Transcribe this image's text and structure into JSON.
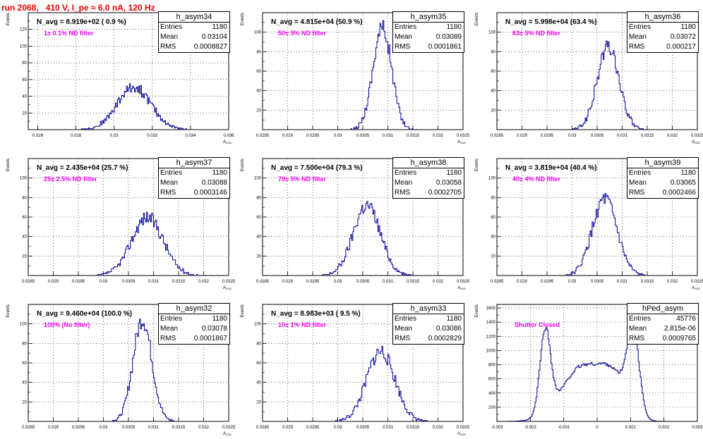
{
  "title": "run 2068,   410 V, I_pe ≈ 6.0 nA, 120 Hz",
  "colors": {
    "title": "#ee0000",
    "histogram": "#000099",
    "filter_text": "#ee00ee",
    "grid": "#000000"
  },
  "stat_labels": {
    "entries": "Entries",
    "mean": "Mean",
    "rms": "RMS"
  },
  "chart_data": [
    {
      "type": "histogram",
      "name": "h_asym34",
      "navg": "N_avg = 8.919e+02 ( 0.9 %)",
      "annotation": "1± 0.1% ND filter",
      "stats": {
        "entries": "1180",
        "mean": "0.03104",
        "rms": "0.0008827"
      },
      "xlabel": "A_LED",
      "ylabel": "Events",
      "grid": true,
      "xlim": [
        0.0255,
        0.036
      ],
      "ylim": [
        0,
        140
      ],
      "xticks": [
        "0.026",
        "0.028",
        "0.03",
        "0.032",
        "0.034",
        "0.036"
      ],
      "xtick_values": [
        0.026,
        0.028,
        0.03,
        0.032,
        0.034,
        0.036
      ],
      "yticks": [
        "20",
        "40",
        "60",
        "80",
        "100",
        "120"
      ],
      "ytick_values": [
        20,
        40,
        60,
        80,
        100,
        120
      ],
      "peaks": [
        {
          "mean": 0.03104,
          "sigma": 0.00088,
          "height": 51
        }
      ],
      "bins": [
        0.0255,
        0.036,
        200
      ],
      "seed": 34
    },
    {
      "type": "histogram",
      "name": "h_asym35",
      "navg": "N_avg = 4.815e+04 (50.9 %)",
      "annotation": "50± 5% ND filter",
      "stats": {
        "entries": "1180",
        "mean": "0.03089",
        "rms": "0.0001861"
      },
      "xlabel": "A_LED",
      "ylabel": "Events",
      "grid": true,
      "xlim": [
        0.0285,
        0.0325
      ],
      "ylim": [
        0,
        120
      ],
      "xticks": [
        "0.0285",
        "0.029",
        "0.0295",
        "0.03",
        "0.0305",
        "0.031",
        "0.0315",
        "0.032",
        "0.0325"
      ],
      "xtick_values": [
        0.0285,
        0.029,
        0.0295,
        0.03,
        0.0305,
        0.031,
        0.0315,
        0.032,
        0.0325
      ],
      "yticks": [
        "20",
        "40",
        "60",
        "80",
        "100"
      ],
      "ytick_values": [
        20,
        40,
        60,
        80,
        100
      ],
      "peaks": [
        {
          "mean": 0.03089,
          "sigma": 0.000186,
          "height": 105
        }
      ],
      "bins": [
        0.0285,
        0.0325,
        200
      ],
      "seed": 35
    },
    {
      "type": "histogram",
      "name": "h_asym36",
      "navg": "N_avg = 5.998e+04 (63.4 %)",
      "annotation": "63± 5% ND filter",
      "stats": {
        "entries": "1180",
        "mean": "0.03072",
        "rms": "0.000217"
      },
      "xlabel": "A_LED",
      "ylabel": "Events",
      "grid": true,
      "xlim": [
        0.0285,
        0.0325
      ],
      "ylim": [
        0,
        120
      ],
      "xticks": [
        "0.0285",
        "0.029",
        "0.0295",
        "0.03",
        "0.0305",
        "0.031",
        "0.0315",
        "0.032",
        "0.0325"
      ],
      "xtick_values": [
        0.0285,
        0.029,
        0.0295,
        0.03,
        0.0305,
        0.031,
        0.0315,
        0.032,
        0.0325
      ],
      "yticks": [
        "20",
        "40",
        "60",
        "80",
        "100"
      ],
      "ytick_values": [
        20,
        40,
        60,
        80,
        100
      ],
      "peaks": [
        {
          "mean": 0.03072,
          "sigma": 0.000217,
          "height": 85
        }
      ],
      "bins": [
        0.0285,
        0.0325,
        200
      ],
      "seed": 36
    },
    {
      "type": "histogram",
      "name": "h_asym37",
      "navg": "N_avg = 2.435e+04 (25.7 %)",
      "annotation": "25± 2.5% ND filter",
      "stats": {
        "entries": "1180",
        "mean": "0.03088",
        "rms": "0.0003146"
      },
      "xlabel": "A_LED",
      "ylabel": "Events",
      "grid": true,
      "xlim": [
        0.0285,
        0.0325
      ],
      "ylim": [
        0,
        120
      ],
      "xticks": [
        "0.0285",
        "0.029",
        "0.0295",
        "0.03",
        "0.0305",
        "0.031",
        "0.0315",
        "0.032",
        "0.0325"
      ],
      "xtick_values": [
        0.0285,
        0.029,
        0.0295,
        0.03,
        0.0305,
        0.031,
        0.0315,
        0.032,
        0.0325
      ],
      "yticks": [
        "20",
        "40",
        "60",
        "80",
        "100"
      ],
      "ytick_values": [
        20,
        40,
        60,
        80,
        100
      ],
      "peaks": [
        {
          "mean": 0.03088,
          "sigma": 0.000315,
          "height": 60
        }
      ],
      "bins": [
        0.0285,
        0.0325,
        200
      ],
      "seed": 37
    },
    {
      "type": "histogram",
      "name": "h_asym38",
      "navg": "N_avg = 7.500e+04 (79.3 %)",
      "annotation": "79± 5% ND filter",
      "stats": {
        "entries": "1180",
        "mean": "0.03058",
        "rms": "0.0002705"
      },
      "xlabel": "A_LED",
      "ylabel": "Events",
      "grid": true,
      "xlim": [
        0.0285,
        0.0325
      ],
      "ylim": [
        0,
        120
      ],
      "xticks": [
        "0.0285",
        "0.029",
        "0.0295",
        "0.03",
        "0.0305",
        "0.031",
        "0.0315",
        "0.032",
        "0.0325"
      ],
      "xtick_values": [
        0.0285,
        0.029,
        0.0295,
        0.03,
        0.0305,
        0.031,
        0.0315,
        0.032,
        0.0325
      ],
      "yticks": [
        "20",
        "40",
        "60",
        "80",
        "100"
      ],
      "ytick_values": [
        20,
        40,
        60,
        80,
        100
      ],
      "peaks": [
        {
          "mean": 0.03058,
          "sigma": 0.00027,
          "height": 72
        }
      ],
      "bins": [
        0.0285,
        0.0325,
        200
      ],
      "seed": 38
    },
    {
      "type": "histogram",
      "name": "h_asym39",
      "navg": "N_avg = 3.819e+04 (40.4 %)",
      "annotation": "40± 4% ND filter",
      "stats": {
        "entries": "1180",
        "mean": "0.03065",
        "rms": "0.0002466"
      },
      "xlabel": "A_LED",
      "ylabel": "Events",
      "grid": true,
      "xlim": [
        0.0285,
        0.0325
      ],
      "ylim": [
        0,
        120
      ],
      "xticks": [
        "0.0285",
        "0.029",
        "0.0295",
        "0.03",
        "0.0305",
        "0.031",
        "0.0315",
        "0.032",
        "0.0325"
      ],
      "xtick_values": [
        0.0285,
        0.029,
        0.0295,
        0.03,
        0.0305,
        0.031,
        0.0315,
        0.032,
        0.0325
      ],
      "yticks": [
        "20",
        "40",
        "60",
        "80",
        "100"
      ],
      "ytick_values": [
        20,
        40,
        60,
        80,
        100
      ],
      "peaks": [
        {
          "mean": 0.03065,
          "sigma": 0.000247,
          "height": 78
        }
      ],
      "bins": [
        0.0285,
        0.0325,
        200
      ],
      "seed": 39
    },
    {
      "type": "histogram",
      "name": "h_asym32",
      "navg": "N_avg = 9.460e+04 (100.0 %)",
      "annotation": "100% (No filter)",
      "stats": {
        "entries": "1180",
        "mean": "0.03078",
        "rms": "0.0001867"
      },
      "xlabel": "A_LED",
      "ylabel": "Events",
      "grid": true,
      "xlim": [
        0.0285,
        0.0325
      ],
      "ylim": [
        0,
        120
      ],
      "xticks": [
        "0.0285",
        "0.029",
        "0.0295",
        "0.03",
        "0.0305",
        "0.031",
        "0.0315",
        "0.032",
        "0.0325"
      ],
      "xtick_values": [
        0.0285,
        0.029,
        0.0295,
        0.03,
        0.0305,
        0.031,
        0.0315,
        0.032,
        0.0325
      ],
      "yticks": [
        "20",
        "40",
        "60",
        "80",
        "100"
      ],
      "ytick_values": [
        20,
        40,
        60,
        80,
        100
      ],
      "peaks": [
        {
          "mean": 0.03078,
          "sigma": 0.000187,
          "height": 105
        }
      ],
      "bins": [
        0.0285,
        0.0325,
        200
      ],
      "seed": 32
    },
    {
      "type": "histogram",
      "name": "h_asym33",
      "navg": "N_avg = 8.983e+03 ( 9.5 %)",
      "annotation": "10± 1% ND filter",
      "stats": {
        "entries": "1180",
        "mean": "0.03086",
        "rms": "0.0002829"
      },
      "xlabel": "A_LED",
      "ylabel": "Events",
      "grid": true,
      "xlim": [
        0.0285,
        0.0325
      ],
      "ylim": [
        0,
        120
      ],
      "xticks": [
        "0.0285",
        "0.029",
        "0.0295",
        "0.03",
        "0.0305",
        "0.031",
        "0.0315",
        "0.032",
        "0.0325"
      ],
      "xtick_values": [
        0.0285,
        0.029,
        0.0295,
        0.03,
        0.0305,
        0.031,
        0.0315,
        0.032,
        0.0325
      ],
      "yticks": [
        "20",
        "40",
        "60",
        "80",
        "100"
      ],
      "ytick_values": [
        20,
        40,
        60,
        80,
        100
      ],
      "peaks": [
        {
          "mean": 0.03086,
          "sigma": 0.00028,
          "height": 72
        }
      ],
      "bins": [
        0.0285,
        0.0325,
        200
      ],
      "seed": 33
    },
    {
      "type": "histogram",
      "name": "hPed_asym",
      "navg": "",
      "annotation": "Shutter Closed",
      "stats": {
        "entries": "45776",
        "mean": "2.815e-06",
        "rms": "0.0009765"
      },
      "xlabel": "",
      "ylabel": "Events",
      "grid": true,
      "xlim": [
        -0.003,
        0.003
      ],
      "ylim": [
        0,
        1650
      ],
      "xticks": [
        "-0.003",
        "-0.002",
        "-0.001",
        "0",
        "0.001",
        "0.002",
        "0.003"
      ],
      "xtick_values": [
        -0.003,
        -0.002,
        -0.001,
        0,
        0.001,
        0.002,
        0.003
      ],
      "yticks": [
        "200",
        "400",
        "600",
        "800",
        "1000",
        "1200",
        "1400",
        "1600"
      ],
      "ytick_values": [
        200,
        400,
        600,
        800,
        1000,
        1200,
        1400,
        1600
      ],
      "peaks": [
        {
          "mean": -0.00155,
          "sigma": 0.00016,
          "height": 1180
        },
        {
          "mean": -0.00045,
          "sigma": 0.0006,
          "height": 760
        },
        {
          "mean": 0.0005,
          "sigma": 0.0004,
          "height": 520
        },
        {
          "mean": 0.00108,
          "sigma": 0.00018,
          "height": 1150
        }
      ],
      "bins": [
        -0.003,
        0.003,
        200
      ],
      "seed": 99
    }
  ]
}
